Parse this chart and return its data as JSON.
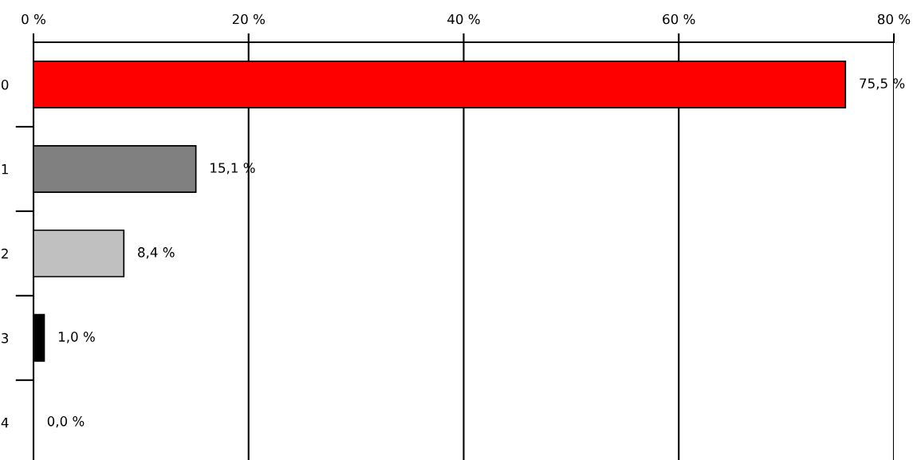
{
  "chart_data": {
    "type": "bar",
    "orientation": "horizontal",
    "categories": [
      "0",
      "1",
      "2",
      "3",
      "4"
    ],
    "values": [
      75.5,
      15.1,
      8.4,
      1.0,
      0.0
    ],
    "colors": [
      "#ff0000",
      "#808080",
      "#c0c0c0",
      "#000000",
      "#000000"
    ],
    "value_labels": [
      "75,5 %",
      "15,1 %",
      "8,4 %",
      "1,0 %",
      "0,0 %"
    ],
    "xlim": [
      0,
      80
    ],
    "xticks": [
      {
        "value": 0,
        "label": "0 %"
      },
      {
        "value": 20,
        "label": "20 %"
      },
      {
        "value": 40,
        "label": "40 %"
      },
      {
        "value": 60,
        "label": "60 %"
      },
      {
        "value": 80,
        "label": "80 %"
      }
    ],
    "grid": "x",
    "legend": false
  }
}
